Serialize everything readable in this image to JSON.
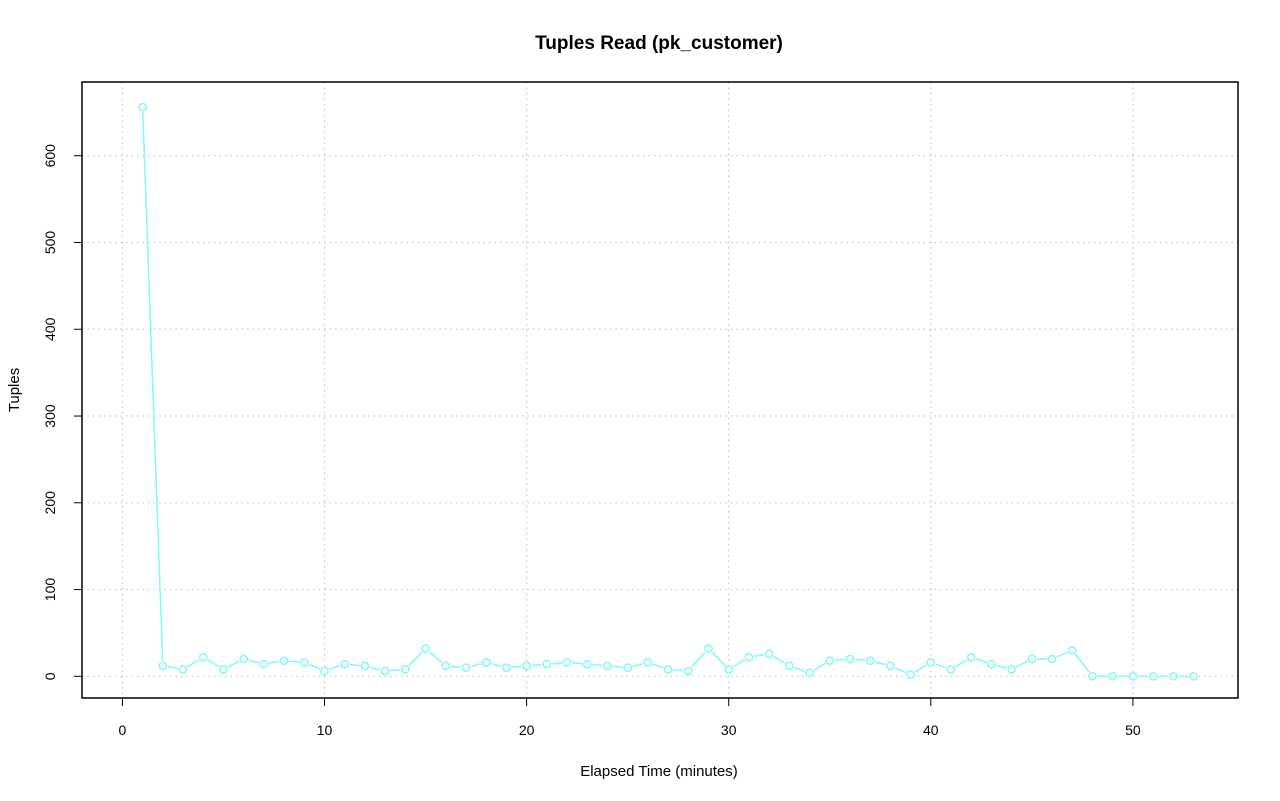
{
  "chart_data": {
    "type": "line",
    "title": "Tuples Read (pk_customer)",
    "xlabel": "Elapsed Time (minutes)",
    "ylabel": "Tuples",
    "xlim": [
      -2,
      55.2
    ],
    "ylim": [
      -25,
      685
    ],
    "xticks": [
      0,
      10,
      20,
      30,
      40,
      50
    ],
    "yticks": [
      0,
      100,
      200,
      300,
      400,
      500,
      600
    ],
    "grid": true,
    "series_color": "#7ff9f9",
    "x": [
      1,
      2,
      3,
      4,
      5,
      6,
      7,
      8,
      9,
      10,
      11,
      12,
      13,
      14,
      15,
      16,
      17,
      18,
      19,
      20,
      21,
      22,
      23,
      24,
      25,
      26,
      27,
      28,
      29,
      30,
      31,
      32,
      33,
      34,
      35,
      36,
      37,
      38,
      39,
      40,
      41,
      42,
      43,
      44,
      45,
      46,
      47,
      48,
      49,
      50,
      51,
      52,
      53
    ],
    "values": [
      656,
      12,
      8,
      22,
      8,
      20,
      14,
      18,
      16,
      6,
      14,
      12,
      6,
      8,
      32,
      12,
      10,
      16,
      10,
      12,
      14,
      16,
      14,
      12,
      10,
      16,
      8,
      6,
      32,
      8,
      22,
      26,
      12,
      4,
      18,
      20,
      18,
      12,
      2,
      16,
      8,
      22,
      14,
      8,
      20,
      20,
      30,
      0,
      0,
      0,
      0,
      0,
      0
    ]
  }
}
